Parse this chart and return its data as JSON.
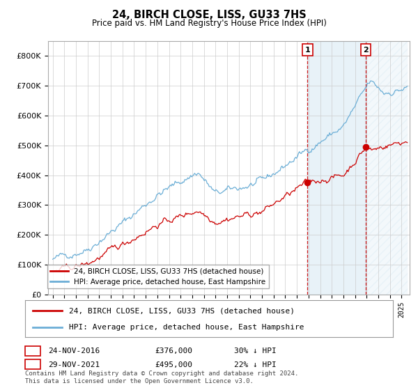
{
  "title": "24, BIRCH CLOSE, LISS, GU33 7HS",
  "subtitle": "Price paid vs. HM Land Registry's House Price Index (HPI)",
  "hpi_color": "#6baed6",
  "price_color": "#cc0000",
  "sale1_date": "24-NOV-2016",
  "sale1_price": "£376,000",
  "sale1_pct": "30% ↓ HPI",
  "sale2_date": "29-NOV-2021",
  "sale2_price": "£495,000",
  "sale2_pct": "22% ↓ HPI",
  "legend1": "24, BIRCH CLOSE, LISS, GU33 7HS (detached house)",
  "legend2": "HPI: Average price, detached house, East Hampshire",
  "footer": "Contains HM Land Registry data © Crown copyright and database right 2024.\nThis data is licensed under the Open Government Licence v3.0.",
  "ylim": [
    0,
    850000
  ],
  "yticks": [
    0,
    100000,
    200000,
    300000,
    400000,
    500000,
    600000,
    700000,
    800000
  ],
  "ytick_labels": [
    "£0",
    "£100K",
    "£200K",
    "£300K",
    "£400K",
    "£500K",
    "£600K",
    "£700K",
    "£800K"
  ],
  "background_color": "#ffffff",
  "grid_color": "#cccccc",
  "shade_color": "#ddeeff",
  "hatch_color": "#cccccc"
}
